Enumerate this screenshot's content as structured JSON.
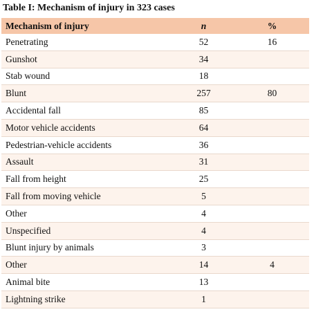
{
  "table": {
    "title": "Table I: Mechanism of injury in 323 cases",
    "header": [
      "Mechanism of injury",
      "n",
      "%"
    ],
    "rows": [
      [
        "Penetrating",
        52,
        16
      ],
      [
        "Gunshot",
        34
      ],
      [
        "Stab wound",
        18
      ],
      [
        "Blunt",
        257,
        80
      ],
      [
        "Accidental fall",
        85
      ],
      [
        "Motor vehicle accidents",
        64
      ],
      [
        "Pedestrian-vehicle accidents",
        36
      ],
      [
        "Assault",
        31
      ],
      [
        "Fall from height",
        25
      ],
      [
        "Fall from moving vehicle",
        5
      ],
      [
        "Other",
        4
      ],
      [
        "Unspecified",
        4
      ],
      [
        "Blunt injury by animals",
        3
      ],
      [
        "Other",
        14,
        4
      ],
      [
        "Animal bite",
        13
      ],
      [
        "Lightning strike",
        1
      ]
    ]
  }
}
